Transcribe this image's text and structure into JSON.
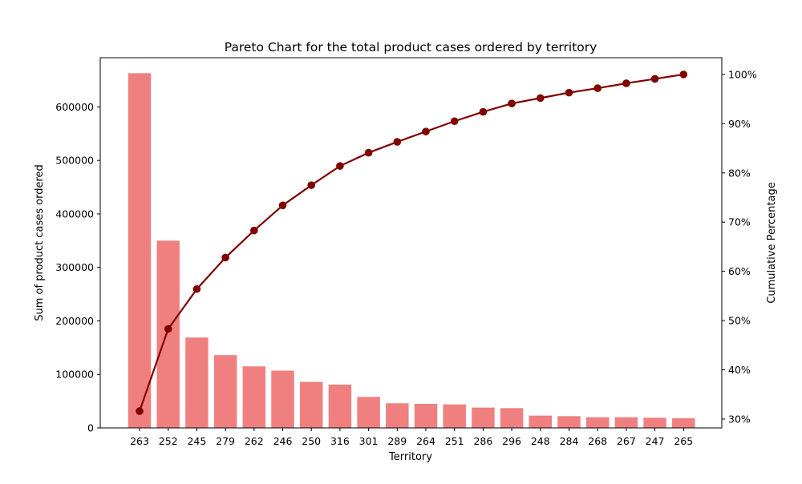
{
  "chart_data": {
    "type": "bar",
    "title": "Pareto Chart for the total product cases ordered by territory",
    "xlabel": "Territory",
    "ylabel": "Sum of product cases ordered",
    "y2label": "Cumulative Percentage",
    "categories": [
      "263",
      "252",
      "245",
      "279",
      "262",
      "246",
      "250",
      "316",
      "301",
      "289",
      "264",
      "251",
      "286",
      "296",
      "248",
      "284",
      "268",
      "267",
      "247",
      "265"
    ],
    "series": [
      {
        "type": "bar",
        "color": "#f08080",
        "values": [
          663000,
          350000,
          169000,
          136000,
          115000,
          107000,
          86000,
          81000,
          58000,
          46000,
          45000,
          44000,
          38000,
          37000,
          23000,
          22000,
          20000,
          20000,
          19000,
          18000
        ]
      },
      {
        "type": "line",
        "axis": "right",
        "color": "#800000",
        "values": [
          31.6,
          48.3,
          56.4,
          62.8,
          68.3,
          73.4,
          77.5,
          81.4,
          84.1,
          86.3,
          88.4,
          90.5,
          92.4,
          94.1,
          95.2,
          96.3,
          97.2,
          98.2,
          99.1,
          100.0
        ]
      }
    ],
    "ylim": [
      0,
      692000
    ],
    "y2lim": [
      28.2,
      103.4
    ],
    "yticks": [
      "0",
      "100000",
      "200000",
      "300000",
      "400000",
      "500000",
      "600000"
    ],
    "y2ticks": [
      "30%",
      "40%",
      "50%",
      "60%",
      "70%",
      "80%",
      "90%",
      "100%"
    ],
    "grid": false,
    "legend": "none"
  }
}
